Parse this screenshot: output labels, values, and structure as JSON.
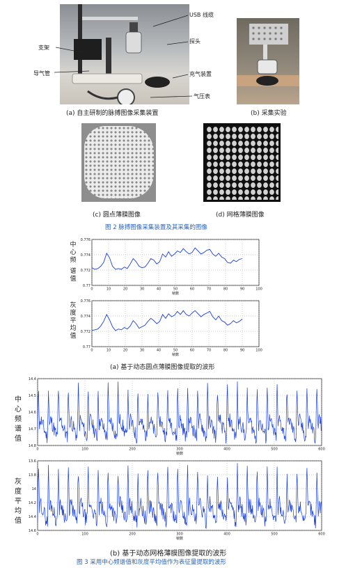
{
  "fig2": {
    "photo_a": {
      "labels": {
        "usb": "USB 线缆",
        "bracket": "支架",
        "probe": "探头",
        "airpipe": "导气管",
        "inflator": "充气装置",
        "gauge": "气压表"
      },
      "caption": "(a)  自主研制的脉搏图像采集装置"
    },
    "photo_b": {
      "caption": "(b)  采集实验"
    },
    "photo_c": {
      "caption": "(c)  圆点薄膜图像"
    },
    "photo_d": {
      "caption": "(d)  网格薄膜图像"
    },
    "title": "图  2  脉搏图像采集装置及其采集的图像"
  },
  "wave_a": {
    "caption": "(a)  基于动态圆点薄膜图像提取的波形",
    "top_ylabel": [
      "中",
      "心",
      "频",
      "谱",
      "值"
    ],
    "bottom_ylabel": [
      "灰",
      "度",
      "平",
      "均",
      "值"
    ],
    "xlabel": "帧数"
  },
  "wave_b": {
    "caption": "(b)  基于动态网格薄膜图像提取的波形",
    "top_ylabel": [
      "中",
      "心",
      "频",
      "谱",
      "值"
    ],
    "bottom_ylabel": [
      "灰",
      "度",
      "平",
      "均",
      "值"
    ],
    "xlabel": "帧数"
  },
  "fig3_title": "图  3  采用中心频谱值和灰度平均值作为表征量提取的波形",
  "chart_data": [
    {
      "type": "line",
      "id": "a_top",
      "xlim": [
        0,
        100
      ],
      "ylim": [
        0.77,
        0.776
      ],
      "xticks": [
        0,
        10,
        20,
        30,
        40,
        50,
        60,
        70,
        80,
        90,
        100
      ],
      "yticks": [
        0.77,
        0.772,
        0.774,
        0.776
      ],
      "ytick_labels": [
        "0.77",
        "0.772",
        "0.774",
        "0.776"
      ],
      "series": [
        {
          "color": "#1a3fd6",
          "x_end": 90,
          "y": [
            0.7723,
            0.7721,
            0.7722,
            0.7725,
            0.773,
            0.7742,
            0.7736,
            0.7725,
            0.7721,
            0.7722,
            0.7721,
            0.7724,
            0.7722,
            0.7728,
            0.7735,
            0.7731,
            0.7725,
            0.7723,
            0.7724,
            0.7729,
            0.7735,
            0.7733,
            0.7728,
            0.7731,
            0.7741,
            0.7737,
            0.7744,
            0.7738,
            0.7741,
            0.7745,
            0.7743,
            0.7748,
            0.7744,
            0.7741,
            0.7743,
            0.7749,
            0.7745,
            0.7741,
            0.7743,
            0.7746,
            0.7747,
            0.7741,
            0.7738,
            0.7742,
            0.7737,
            0.7735,
            0.773,
            0.7729,
            0.7733,
            0.7731,
            0.7734,
            0.7735
          ]
        }
      ]
    },
    {
      "type": "line",
      "id": "a_bottom",
      "xlim": [
        0,
        100
      ],
      "ylim": [
        0.77,
        0.776
      ],
      "xticks": [
        0,
        10,
        20,
        30,
        40,
        50,
        60,
        70,
        80,
        90,
        100
      ],
      "yticks": [
        0.77,
        0.772,
        0.774,
        0.776
      ],
      "ytick_labels": [
        "0.77",
        "0.772",
        "0.774",
        "0.776"
      ],
      "series": [
        {
          "color": "#1a3fd6",
          "x_end": 90,
          "y": [
            0.7721,
            0.7722,
            0.7723,
            0.7727,
            0.7733,
            0.7742,
            0.7735,
            0.7726,
            0.7721,
            0.7723,
            0.7722,
            0.7725,
            0.7723,
            0.7727,
            0.7734,
            0.773,
            0.7724,
            0.7726,
            0.7728,
            0.7733,
            0.7737,
            0.7734,
            0.773,
            0.7733,
            0.7742,
            0.7737,
            0.7743,
            0.7739,
            0.7741,
            0.7746,
            0.7742,
            0.7747,
            0.7742,
            0.774,
            0.7744,
            0.7747,
            0.7743,
            0.7739,
            0.7742,
            0.7744,
            0.7746,
            0.7739,
            0.7735,
            0.774,
            0.7734,
            0.7732,
            0.7728,
            0.773,
            0.7734,
            0.7731,
            0.7733,
            0.7736
          ]
        }
      ]
    },
    {
      "type": "line",
      "id": "b_top",
      "xlim": [
        0,
        600
      ],
      "xticks": [
        0,
        100,
        200,
        300,
        400,
        500,
        600
      ],
      "ytick_labels": [
        "14.8",
        "14.7",
        "14.6",
        "14.5",
        "14.4"
      ],
      "series": [
        {
          "color": "#1a3fd6",
          "x_end": 600,
          "pattern": "periodic-pulse",
          "period_frames": 21
        }
      ]
    },
    {
      "type": "line",
      "id": "b_bottom",
      "xlim": [
        0,
        600
      ],
      "xticks": [
        0,
        100,
        200,
        300,
        400,
        500,
        600
      ],
      "ytick_labels": [
        "14.6",
        "14.4",
        "14.2",
        "14",
        "13.8",
        "13.6"
      ],
      "series": [
        {
          "color": "#1a3fd6",
          "x_end": 600,
          "pattern": "periodic-pulse",
          "period_frames": 21
        }
      ]
    }
  ]
}
